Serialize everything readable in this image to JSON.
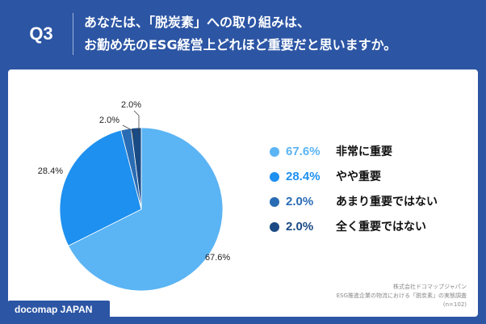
{
  "header": {
    "question_label": "Q3",
    "title_line1": "あなたは、「脱炭素」への取り組みは、",
    "title_line2": "お勤め先のESG経営上どれほど重要だと思いますか。"
  },
  "chart_data": {
    "type": "pie",
    "categories": [
      "非常に重要",
      "やや重要",
      "あまり重要ではない",
      "全く重要ではない"
    ],
    "values": [
      67.6,
      28.4,
      2.0,
      2.0
    ],
    "value_labels": [
      "67.6%",
      "28.4%",
      "2.0%",
      "2.0%"
    ],
    "colors": [
      "#5bb4f4",
      "#1e90ef",
      "#2a6cb4",
      "#1a4a84"
    ],
    "legend": "right"
  },
  "legend": [
    {
      "value": "67.6%",
      "label": "非常に重要",
      "color": "#5bb4f4"
    },
    {
      "value": "28.4%",
      "label": "やや重要",
      "color": "#1e90ef"
    },
    {
      "value": "2.0%",
      "label": "あまり重要ではない",
      "color": "#2a6cb4"
    },
    {
      "value": "2.0%",
      "label": "全く重要ではない",
      "color": "#1a4a84"
    }
  ],
  "footer": {
    "line1": "株式会社ドコマップジャパン",
    "line2": "ESG推進企業の物流における「脱炭素」の実態調査",
    "line3": "(n=102)"
  },
  "brand": "docomap JAPAN"
}
